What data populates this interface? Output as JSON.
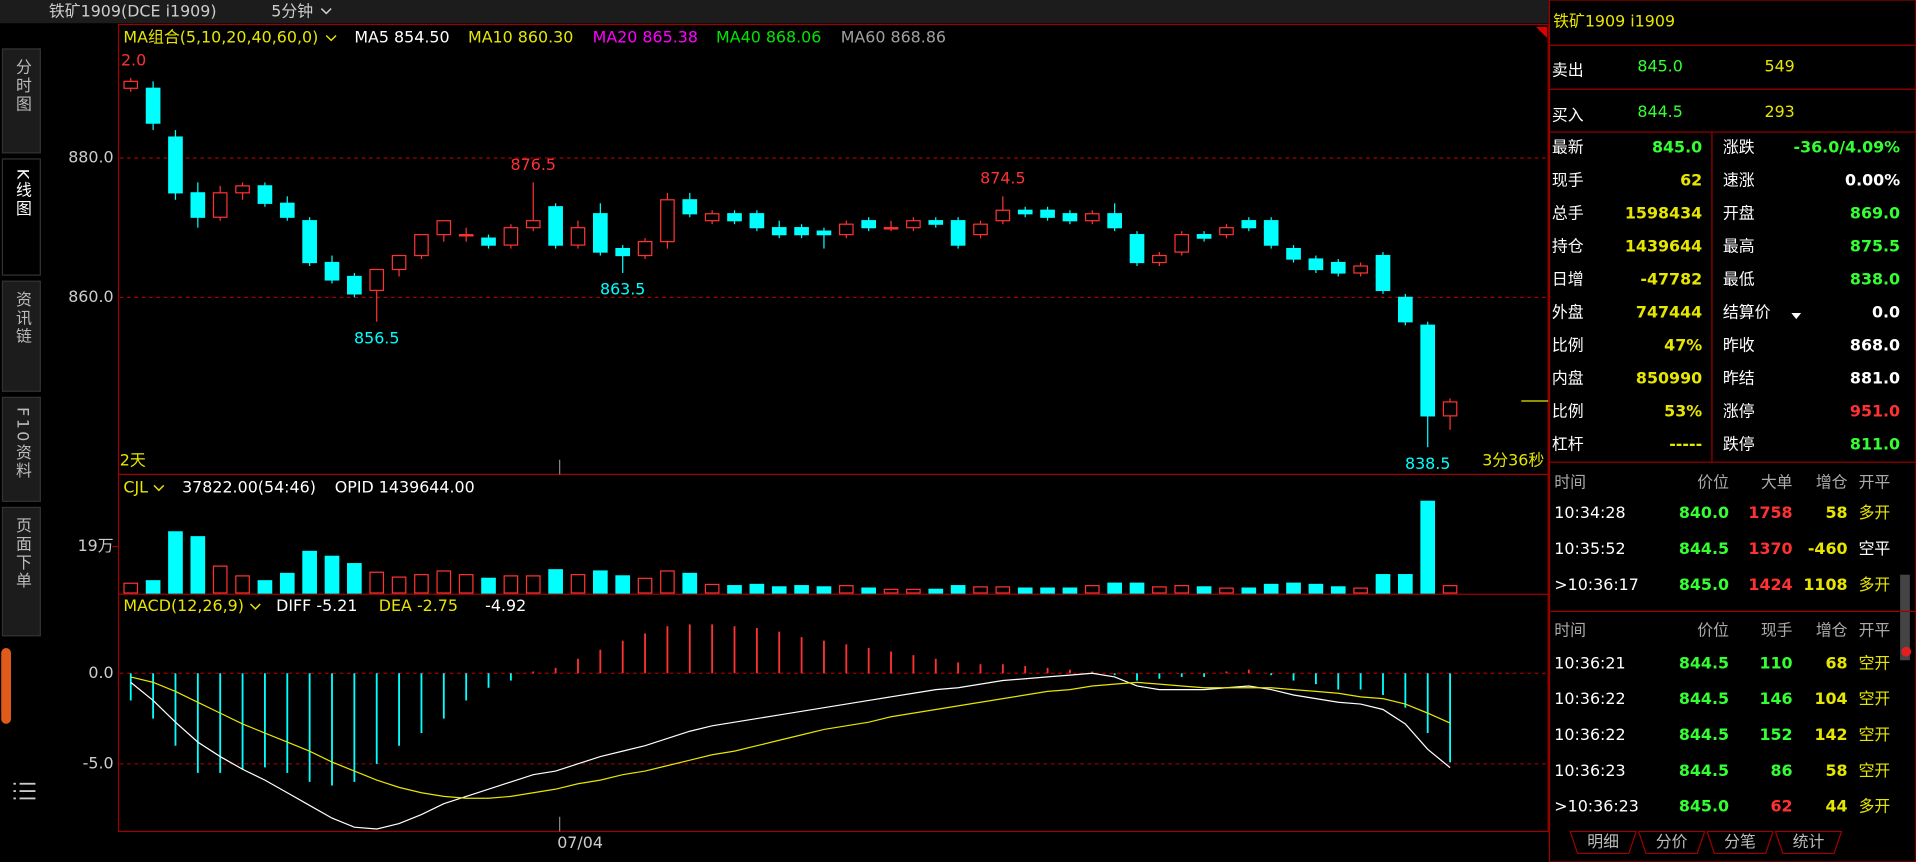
{
  "toolbar": {
    "symbol": "铁矿1909(DCE i1909)",
    "period": "5分钟"
  },
  "sidebar": [
    "分时图",
    "K线图",
    "资讯链",
    "F10资料",
    "页面下单"
  ],
  "chart": {
    "type": "candlestick",
    "ma_label": "MA组合(5,10,20,40,60,0)",
    "ma_legend": [
      {
        "text": "MA5 854.50",
        "color": "#ffffff"
      },
      {
        "text": "MA10 860.30",
        "color": "#e6e600"
      },
      {
        "text": "MA20 865.38",
        "color": "#ff00ff"
      },
      {
        "text": "MA40 868.06",
        "color": "#00e600"
      },
      {
        "text": "MA60 868.86",
        "color": "#a0a0a0"
      }
    ],
    "edge_label": "2.0",
    "span_label": "2天",
    "countdown": "3分36秒",
    "x_label": "07/04",
    "ylim": [
      834.6,
      896
    ],
    "yticks": [
      {
        "value": 880,
        "label": "880.0"
      },
      {
        "value": 860,
        "label": "860.0"
      }
    ],
    "up_color": "#ff3232",
    "down_color": "#00ffff",
    "candles": [
      [
        890,
        891.5,
        889.5,
        891
      ],
      [
        890,
        891,
        884,
        885
      ],
      [
        883,
        884,
        874,
        875
      ],
      [
        875,
        876.5,
        870,
        871.5
      ],
      [
        871.5,
        876,
        871,
        875
      ],
      [
        875,
        876.5,
        874,
        876
      ],
      [
        876,
        876.5,
        873,
        873.5
      ],
      [
        873.5,
        874.5,
        871,
        871.5
      ],
      [
        871,
        871.5,
        864.5,
        865
      ],
      [
        865,
        866,
        862,
        862.5
      ],
      [
        863,
        863.5,
        860,
        860.5
      ],
      [
        861,
        864,
        856.5,
        864
      ],
      [
        864,
        866,
        863,
        866
      ],
      [
        866,
        869,
        865.5,
        869
      ],
      [
        869,
        871,
        868,
        871
      ],
      [
        869,
        870,
        868,
        869
      ],
      [
        868.5,
        869,
        867,
        867.5
      ],
      [
        867.5,
        870.5,
        867,
        870
      ],
      [
        870,
        876.5,
        869.5,
        871
      ],
      [
        873,
        873.5,
        867,
        867.5
      ],
      [
        867.5,
        871,
        867,
        870
      ],
      [
        872,
        873.5,
        866,
        866.5
      ],
      [
        867,
        867.5,
        863.5,
        866
      ],
      [
        866,
        868.5,
        865.5,
        868
      ],
      [
        868,
        875,
        867,
        874
      ],
      [
        874,
        875,
        871.5,
        872
      ],
      [
        871,
        872.5,
        870.5,
        872
      ],
      [
        872,
        872.5,
        870.5,
        871
      ],
      [
        872,
        872.5,
        869.5,
        870
      ],
      [
        870,
        871,
        868.5,
        869
      ],
      [
        870,
        870.5,
        868.5,
        869
      ],
      [
        869.5,
        870,
        867,
        869
      ],
      [
        869,
        871,
        868.5,
        870.5
      ],
      [
        871,
        871.5,
        869.5,
        870
      ],
      [
        870,
        871,
        869.5,
        870
      ],
      [
        870,
        871.5,
        869.5,
        871
      ],
      [
        871,
        871.5,
        870,
        870.5
      ],
      [
        871,
        871.5,
        867,
        867.5
      ],
      [
        869,
        871,
        868.5,
        870.5
      ],
      [
        871,
        874.5,
        870.5,
        872.5
      ],
      [
        872.5,
        873,
        871.5,
        872
      ],
      [
        872.5,
        873,
        871,
        871.5
      ],
      [
        872,
        872.5,
        870.5,
        871
      ],
      [
        871,
        872.5,
        870.5,
        872
      ],
      [
        872,
        873.5,
        869.5,
        870
      ],
      [
        869,
        869.5,
        864.5,
        865
      ],
      [
        865,
        866.5,
        864.5,
        866
      ],
      [
        866.5,
        869.5,
        866,
        869
      ],
      [
        869,
        869.5,
        868,
        868.5
      ],
      [
        869,
        870.5,
        868.5,
        870
      ],
      [
        871,
        871.5,
        869.5,
        870
      ],
      [
        871,
        871.5,
        867,
        867.5
      ],
      [
        867,
        867.5,
        865,
        865.5
      ],
      [
        865.5,
        866,
        863.5,
        864
      ],
      [
        865,
        865.5,
        863,
        863.5
      ],
      [
        863.5,
        865,
        863,
        864.5
      ],
      [
        866,
        866.5,
        860.5,
        861
      ],
      [
        860,
        860.5,
        856,
        856.5
      ],
      [
        856,
        856.5,
        838.5,
        843
      ],
      [
        843,
        845.5,
        841,
        845
      ]
    ],
    "volume": {
      "label": "CJL",
      "value_text": "37822.00(54:46)",
      "opid": "OPID 1439644.00",
      "ylim": [
        0,
        475000
      ],
      "yticks": [
        {
          "value": 190000,
          "label": "19万"
        }
      ],
      "values": [
        40000,
        50000,
        250000,
        230000,
        110000,
        70000,
        50000,
        80000,
        170000,
        150000,
        120000,
        85000,
        65000,
        75000,
        90000,
        75000,
        60000,
        70000,
        70000,
        95000,
        75000,
        90000,
        70000,
        60000,
        90000,
        80000,
        35000,
        30000,
        35000,
        25000,
        30000,
        25000,
        30000,
        20000,
        15000,
        15000,
        15000,
        30000,
        25000,
        25000,
        20000,
        20000,
        20000,
        30000,
        40000,
        40000,
        25000,
        30000,
        25000,
        20000,
        20000,
        35000,
        40000,
        35000,
        25000,
        20000,
        75000,
        75000,
        375000,
        30000
      ]
    },
    "macd": {
      "label": "MACD(12,26,9)",
      "diff_text": "DIFF -5.21",
      "dea_text": "DEA -2.75",
      "macd_text": "-4.92",
      "ylim": [
        -8.6,
        4.3
      ],
      "yticks": [
        {
          "value": 0,
          "label": "0.0"
        },
        {
          "value": -5,
          "label": "-5.0"
        }
      ],
      "diff_color": "#ffffff",
      "dea_color": "#e6e600",
      "histogram": [
        -1.5,
        -2.5,
        -4.0,
        -5.5,
        -5.5,
        -5.3,
        -5.2,
        -5.5,
        -6.0,
        -6.2,
        -6.0,
        -5.0,
        -4.0,
        -3.3,
        -2.5,
        -1.5,
        -0.8,
        -0.4,
        0.1,
        0.3,
        0.8,
        1.3,
        1.8,
        2.2,
        2.6,
        2.7,
        2.7,
        2.6,
        2.5,
        2.3,
        2.0,
        1.8,
        1.6,
        1.4,
        1.2,
        1.0,
        0.8,
        0.6,
        0.5,
        0.5,
        0.4,
        0.3,
        0.2,
        0.1,
        -0.1,
        -0.4,
        -0.3,
        -0.2,
        -0.2,
        0.1,
        0.2,
        -0.1,
        -0.4,
        -0.6,
        -0.9,
        -0.9,
        -1.2,
        -1.9,
        -3.3,
        -4.92
      ],
      "diff": [
        -0.5,
        -1.5,
        -2.7,
        -3.8,
        -4.6,
        -5.3,
        -5.9,
        -6.6,
        -7.3,
        -8.0,
        -8.5,
        -8.6,
        -8.3,
        -7.8,
        -7.2,
        -6.8,
        -6.4,
        -6.0,
        -5.6,
        -5.4,
        -5.0,
        -4.6,
        -4.3,
        -4.0,
        -3.6,
        -3.2,
        -2.9,
        -2.7,
        -2.5,
        -2.3,
        -2.1,
        -1.9,
        -1.7,
        -1.5,
        -1.3,
        -1.1,
        -0.9,
        -0.8,
        -0.6,
        -0.4,
        -0.3,
        -0.2,
        -0.1,
        0.0,
        -0.2,
        -0.7,
        -0.9,
        -0.9,
        -0.9,
        -0.8,
        -0.7,
        -0.9,
        -1.2,
        -1.4,
        -1.6,
        -1.7,
        -2.0,
        -2.8,
        -4.2,
        -5.21
      ],
      "dea": [
        -0.2,
        -0.5,
        -1.0,
        -1.6,
        -2.2,
        -2.8,
        -3.3,
        -3.8,
        -4.3,
        -4.9,
        -5.4,
        -5.9,
        -6.3,
        -6.6,
        -6.8,
        -6.9,
        -6.9,
        -6.8,
        -6.6,
        -6.4,
        -6.1,
        -5.9,
        -5.6,
        -5.4,
        -5.1,
        -4.8,
        -4.5,
        -4.3,
        -4.0,
        -3.7,
        -3.4,
        -3.1,
        -2.9,
        -2.7,
        -2.4,
        -2.2,
        -2.0,
        -1.8,
        -1.6,
        -1.4,
        -1.2,
        -1.0,
        -0.9,
        -0.7,
        -0.6,
        -0.5,
        -0.6,
        -0.7,
        -0.8,
        -0.8,
        -0.8,
        -0.8,
        -0.9,
        -1.0,
        -1.1,
        -1.3,
        -1.4,
        -1.7,
        -2.2,
        -2.75
      ]
    }
  },
  "quote": {
    "title": "铁矿1909  i1909",
    "ask": [
      "卖出",
      "845.0",
      "549"
    ],
    "bid": [
      "买入",
      "844.5",
      "293"
    ],
    "rows": [
      [
        "最新",
        "845.0",
        "涨跌",
        "-36.0/4.09%"
      ],
      [
        "现手",
        "62",
        "速涨",
        "0.00%"
      ],
      [
        "总手",
        "1598434",
        "开盘",
        "869.0"
      ],
      [
        "持仓",
        "1439644",
        "最高",
        "875.5"
      ],
      [
        "日增",
        "-47782",
        "最低",
        "838.0"
      ],
      [
        "外盘",
        "747444",
        "结算价",
        "0.0"
      ],
      [
        "比例",
        "47%",
        "昨收",
        "868.0"
      ],
      [
        "内盘",
        "850990",
        "昨结",
        "881.0"
      ],
      [
        "比例",
        "53%",
        "涨停",
        "951.0"
      ],
      [
        "杠杆",
        "-----",
        "跌停",
        "811.0"
      ]
    ]
  },
  "trades_big": {
    "header": [
      "时间",
      "价位",
      "大单",
      "增仓",
      "开平"
    ],
    "rows": [
      [
        "10:34:28",
        "840.0",
        "1758",
        "58",
        "多开"
      ],
      [
        "10:35:52",
        "844.5",
        "1370",
        "-460",
        "空平"
      ],
      [
        ">10:36:17",
        "845.0",
        "1424",
        "1108",
        "多开"
      ]
    ]
  },
  "trades": {
    "header": [
      "时间",
      "价位",
      "现手",
      "增仓",
      "开平"
    ],
    "rows": [
      [
        "10:36:21",
        "844.5",
        "110",
        "68",
        "空开"
      ],
      [
        "10:36:22",
        "844.5",
        "146",
        "104",
        "空开"
      ],
      [
        "10:36:22",
        "844.5",
        "152",
        "142",
        "空开"
      ],
      [
        "10:36:23",
        "844.5",
        "86",
        "58",
        "空开"
      ],
      [
        ">10:36:23",
        "845.0",
        "62",
        "44",
        "多开"
      ]
    ]
  },
  "tabs": [
    "明细",
    "分价",
    "分笔",
    "统计"
  ]
}
